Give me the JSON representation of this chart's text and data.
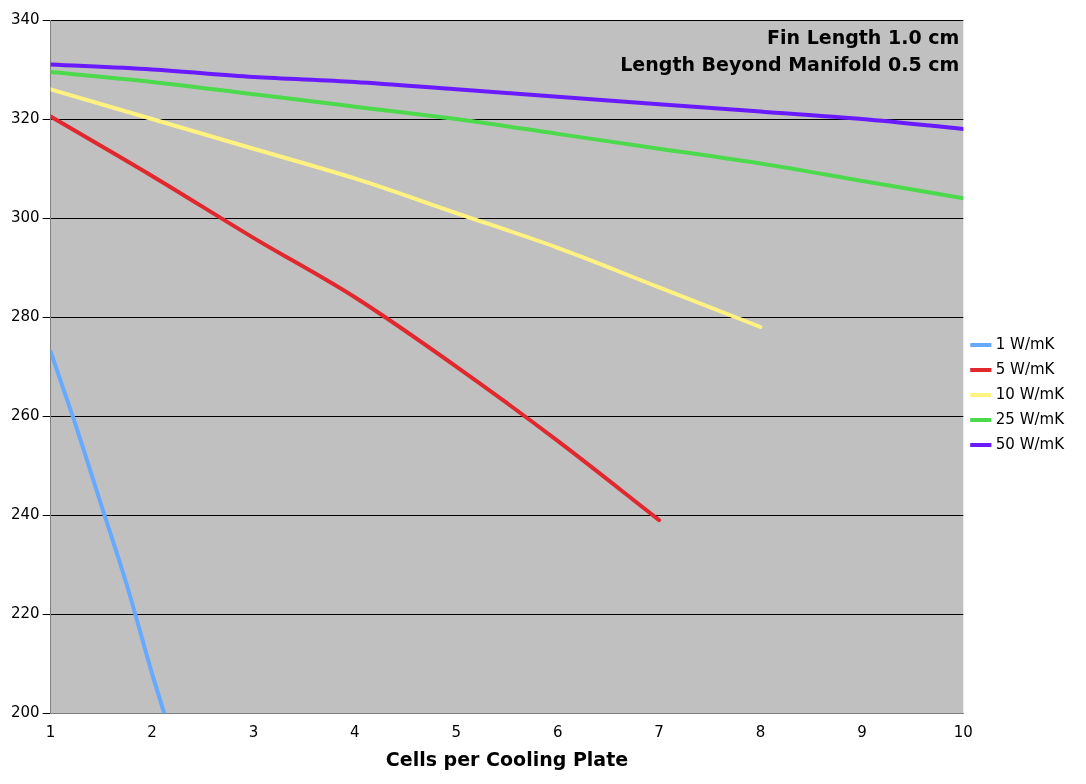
{
  "chart_data": {
    "type": "line",
    "xlabel": "Cells per Cooling Plate",
    "annotations": [
      "Fin Length 1.0 cm",
      "Length Beyond Manifold 0.5 cm"
    ],
    "xlim": [
      1,
      10
    ],
    "xticks": [
      1,
      2,
      3,
      4,
      5,
      6,
      7,
      8,
      9,
      10
    ],
    "ylim": [
      200,
      340
    ],
    "yticks": [
      200,
      220,
      240,
      260,
      280,
      300,
      320,
      340
    ],
    "grid": "y",
    "legend": "right",
    "marker": "none",
    "line_style": "solid",
    "series": [
      {
        "name": "1 W/mK",
        "color": "#66aaff",
        "x": [
          1,
          1.25,
          1.5,
          1.75,
          2,
          2.12
        ],
        "values": [
          273,
          258,
          242,
          226,
          208,
          200
        ]
      },
      {
        "name": "5 W/mK",
        "color": "#e0282e",
        "x": [
          1,
          2,
          3,
          4,
          5,
          6,
          7
        ],
        "values": [
          320.5,
          308.5,
          296,
          284,
          270,
          255,
          239
        ]
      },
      {
        "name": "10 W/mK",
        "color": "#fff280",
        "x": [
          1,
          2,
          3,
          4,
          5,
          6,
          7,
          8
        ],
        "values": [
          326,
          320,
          314,
          308,
          301,
          294,
          286,
          278
        ]
      },
      {
        "name": "25 W/mK",
        "color": "#4cd94c",
        "x": [
          1,
          2,
          3,
          4,
          5,
          6,
          7,
          8,
          9,
          10
        ],
        "values": [
          329.5,
          327.5,
          325,
          322.5,
          320,
          317,
          314,
          311,
          307.5,
          304
        ]
      },
      {
        "name": "50 W/mK",
        "color": "#6a1aff",
        "x": [
          1,
          2,
          3,
          4,
          5,
          6,
          7,
          8,
          9,
          10
        ],
        "values": [
          331,
          330,
          328.5,
          327.5,
          326,
          324.5,
          323,
          321.5,
          320,
          318
        ]
      }
    ]
  }
}
